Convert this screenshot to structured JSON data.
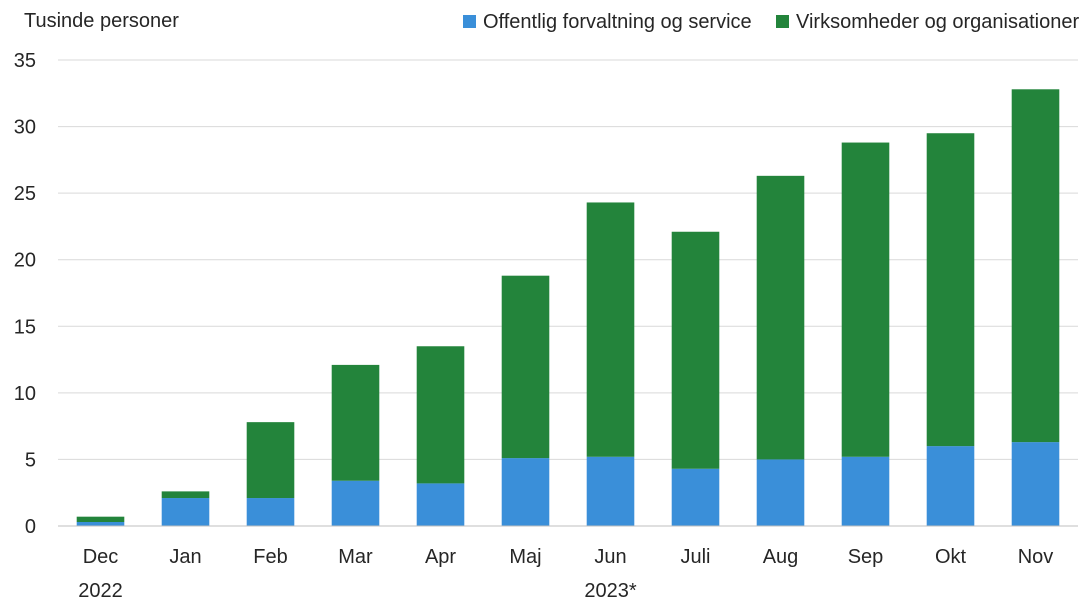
{
  "chart_data": {
    "type": "bar",
    "stacked": true,
    "unit_label": "Tusinde personer",
    "categories": [
      "Dec",
      "Jan",
      "Feb",
      "Mar",
      "Apr",
      "Maj",
      "Jun",
      "Juli",
      "Aug",
      "Sep",
      "Okt",
      "Nov"
    ],
    "category_groups": [
      {
        "label": "2022",
        "categories": [
          "Dec"
        ]
      },
      {
        "label": "2023*",
        "categories": [
          "Jan",
          "Feb",
          "Mar",
          "Apr",
          "Maj",
          "Jun",
          "Juli",
          "Aug",
          "Sep",
          "Okt",
          "Nov"
        ]
      }
    ],
    "series": [
      {
        "name": "Offentlig forvaltning og service",
        "color": "#3a8fd9",
        "values": [
          0.3,
          2.1,
          2.1,
          3.4,
          3.2,
          5.1,
          5.2,
          4.3,
          5.0,
          5.2,
          6.0,
          6.3
        ]
      },
      {
        "name": "Virksomheder og organisationer",
        "color": "#23843b",
        "values": [
          0.4,
          0.5,
          5.7,
          8.7,
          10.3,
          13.7,
          19.1,
          17.8,
          21.3,
          23.6,
          23.5,
          26.5
        ]
      }
    ],
    "ylim": [
      0,
      35
    ],
    "yticks": [
      0,
      5,
      10,
      15,
      20,
      25,
      30,
      35
    ],
    "grid": true,
    "legend_position": "top-right"
  }
}
